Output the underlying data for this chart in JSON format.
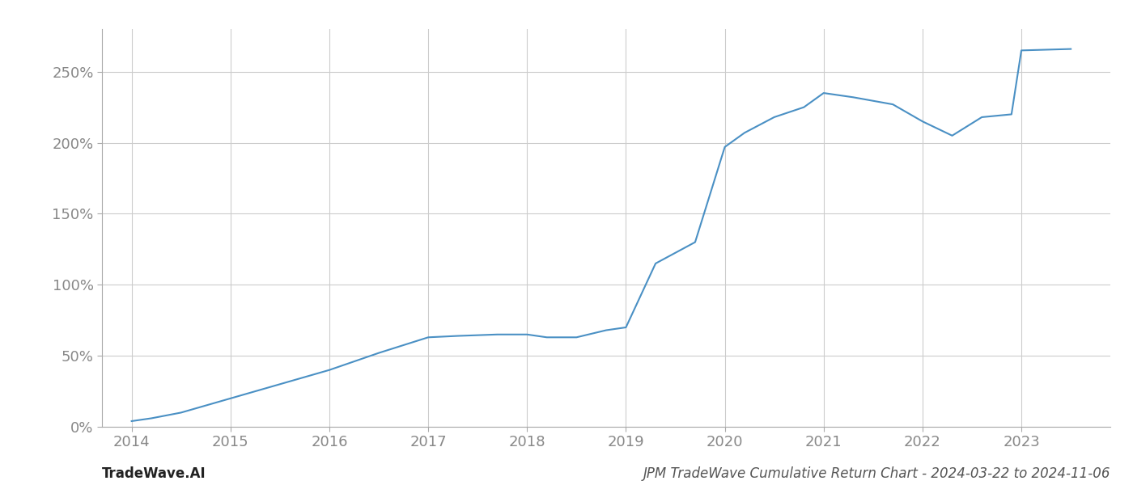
{
  "x_years": [
    2014.0,
    2014.2,
    2014.5,
    2015.0,
    2015.5,
    2016.0,
    2016.5,
    2017.0,
    2017.3,
    2017.7,
    2018.0,
    2018.2,
    2018.5,
    2018.8,
    2019.0,
    2019.3,
    2019.7,
    2020.0,
    2020.2,
    2020.5,
    2020.8,
    2021.0,
    2021.3,
    2021.7,
    2022.0,
    2022.3,
    2022.6,
    2022.9,
    2023.0,
    2023.5
  ],
  "y_values": [
    4,
    6,
    10,
    20,
    30,
    40,
    52,
    63,
    64,
    65,
    65,
    63,
    63,
    68,
    70,
    115,
    130,
    197,
    207,
    218,
    225,
    235,
    232,
    227,
    215,
    205,
    218,
    220,
    265,
    266
  ],
  "line_color": "#4a90c4",
  "line_width": 1.5,
  "background_color": "#ffffff",
  "grid_color": "#cccccc",
  "title": "JPM TradeWave Cumulative Return Chart - 2024-03-22 to 2024-11-06",
  "watermark_left": "TradeWave.AI",
  "xlim": [
    2013.7,
    2023.9
  ],
  "ylim": [
    0,
    280
  ],
  "yticks": [
    0,
    50,
    100,
    150,
    200,
    250
  ],
  "xticks": [
    2014,
    2015,
    2016,
    2017,
    2018,
    2019,
    2020,
    2021,
    2022,
    2023
  ],
  "tick_fontsize": 13,
  "watermark_fontsize": 12,
  "title_fontsize": 12
}
